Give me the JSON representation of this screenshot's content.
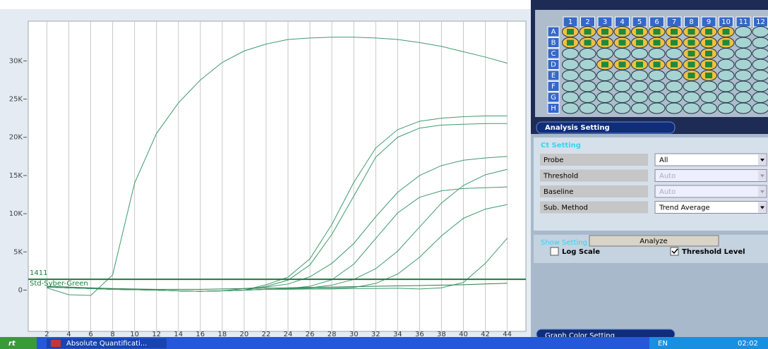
{
  "chart": {
    "type": "line",
    "x": [
      2,
      4,
      6,
      8,
      10,
      12,
      14,
      16,
      18,
      20,
      22,
      24,
      26,
      28,
      30,
      32,
      34,
      36,
      38,
      40,
      42,
      44
    ],
    "xlim": [
      0.3,
      45.7
    ],
    "ylim": [
      -5400,
      35200
    ],
    "xticks": [
      2,
      4,
      6,
      8,
      10,
      12,
      14,
      16,
      18,
      20,
      22,
      24,
      26,
      28,
      30,
      32,
      34,
      36,
      38,
      40,
      42,
      44
    ],
    "yticks": [
      0,
      {
        "value": 5000,
        "label": "5K"
      },
      {
        "value": 10000,
        "label": "10K"
      },
      {
        "value": 15000,
        "label": "15K"
      },
      {
        "value": 20000,
        "label": "20K"
      },
      {
        "value": 25000,
        "label": "25K"
      },
      {
        "value": 30000,
        "label": "30K"
      }
    ],
    "grid": true,
    "threshold": {
      "value": 1411,
      "name": "Std-Syber-Green",
      "color": "#1d7a3c"
    },
    "series": [
      {
        "color": "#3f9a6c",
        "values": [
          300,
          -600,
          -700,
          2000,
          14000,
          20500,
          24500,
          27500,
          29800,
          31300,
          32200,
          32800,
          33000,
          33100,
          33100,
          33000,
          32800,
          32400,
          31900,
          31200,
          30500,
          29700
        ]
      },
      {
        "color": "#3f9a6c",
        "values": [
          400,
          300,
          200,
          100,
          50,
          0,
          -100,
          -150,
          -100,
          0,
          700,
          1700,
          4100,
          8600,
          14100,
          18600,
          21000,
          22100,
          22500,
          22700,
          22800,
          22800
        ]
      },
      {
        "color": "#3f9a6c",
        "values": [
          400,
          300,
          200,
          100,
          50,
          0,
          -100,
          -150,
          -100,
          0,
          500,
          1300,
          3300,
          7300,
          12300,
          17400,
          20000,
          21200,
          21600,
          21700,
          21800,
          21800
        ]
      },
      {
        "color": "#3f9a6c",
        "values": [
          400,
          300,
          200,
          100,
          50,
          0,
          -100,
          -150,
          -100,
          200,
          400,
          800,
          1750,
          3500,
          6100,
          9600,
          12800,
          15000,
          16300,
          17000,
          17300,
          17500
        ]
      },
      {
        "color": "#3f9a6c",
        "values": [
          400,
          300,
          200,
          100,
          50,
          0,
          -100,
          -150,
          -100,
          0,
          100,
          200,
          500,
          1350,
          3400,
          6750,
          10100,
          12150,
          13000,
          13300,
          13400,
          13500
        ]
      },
      {
        "color": "#3f9a6c",
        "values": [
          400,
          300,
          200,
          100,
          50,
          0,
          -100,
          -150,
          -100,
          0,
          100,
          200,
          300,
          650,
          1400,
          2800,
          5100,
          8250,
          11400,
          13700,
          15100,
          15800
        ]
      },
      {
        "color": "#3f9a6c",
        "values": [
          400,
          300,
          200,
          100,
          50,
          0,
          -100,
          -150,
          -100,
          0,
          100,
          150,
          200,
          250,
          350,
          870,
          2100,
          4300,
          7100,
          9400,
          10600,
          11200
        ]
      },
      {
        "color": "#3f9a6c",
        "values": [
          400,
          300,
          200,
          100,
          50,
          0,
          -100,
          -150,
          -100,
          0,
          100,
          100,
          150,
          150,
          200,
          200,
          250,
          150,
          300,
          1000,
          3500,
          6800
        ]
      },
      {
        "color": "#2f7a4c",
        "values": [
          500,
          400,
          300,
          200,
          150,
          100,
          100,
          100,
          150,
          200,
          250,
          300,
          350,
          400,
          450,
          500,
          550,
          600,
          650,
          700,
          800,
          900
        ]
      }
    ]
  },
  "plate": {
    "columns": [
      "1",
      "2",
      "3",
      "4",
      "5",
      "6",
      "7",
      "8",
      "9",
      "10",
      "11",
      "12"
    ],
    "rows": [
      "A",
      "B",
      "C",
      "D",
      "E",
      "F",
      "G",
      "H"
    ],
    "selected": [
      [
        1,
        2,
        3,
        4,
        5,
        6,
        7,
        8,
        9,
        10
      ],
      [
        1,
        2,
        3,
        4,
        5,
        6,
        7,
        8,
        9,
        10
      ],
      [
        8,
        9
      ],
      [
        3,
        4,
        5,
        6,
        7,
        8,
        9
      ],
      [
        8,
        9
      ],
      [],
      [],
      []
    ]
  },
  "panel": {
    "title": "Analysis Setting",
    "ct_title": "Ct Setting",
    "rows": [
      {
        "label": "Probe",
        "value": "All",
        "enabled": true
      },
      {
        "label": "Threshold",
        "value": "Auto",
        "enabled": false
      },
      {
        "label": "Baseline",
        "value": "Auto",
        "enabled": false
      },
      {
        "label": "Sub. Method",
        "value": "Trend Average",
        "enabled": true
      }
    ],
    "analyze": "Analyze",
    "show_title": "Show Setting",
    "log_scale": {
      "label": "Log Scale",
      "checked": false
    },
    "threshold_level": {
      "label": "Threshold Level",
      "checked": true
    },
    "graph_color": "Graph Color Setting"
  },
  "taskbar": {
    "start": "rt",
    "task": "Absolute Quantificati...",
    "lang": "EN",
    "clock": "02:02"
  }
}
